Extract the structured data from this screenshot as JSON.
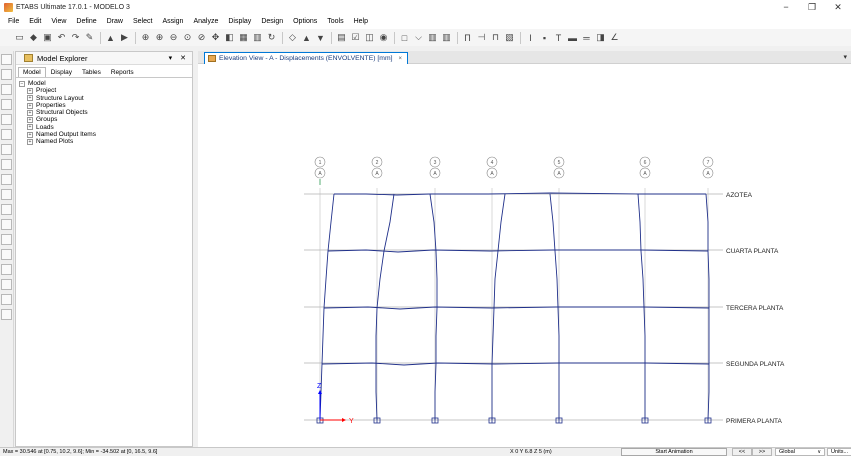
{
  "title_bar": {
    "title": "ETABS Ultimate 17.0.1 - MODELO 3",
    "minimize_glyph": "−",
    "restore_glyph": "❐",
    "close_glyph": "✕"
  },
  "menu": [
    "File",
    "Edit",
    "View",
    "Define",
    "Draw",
    "Select",
    "Assign",
    "Analyze",
    "Display",
    "Design",
    "Options",
    "Tools",
    "Help"
  ],
  "toolbar_icons": [
    "new-model-icon",
    "open-icon",
    "save-icon",
    "undo-icon",
    "redo-icon",
    "edit-pencil-icon",
    "lock-icon",
    "run-analysis-icon",
    "zoom-window-icon",
    "zoom-in-icon",
    "zoom-out-icon",
    "zoom-fit-icon",
    "zoom-previous-icon",
    "pan-icon",
    "3d-view-icon",
    "plan-view-icon",
    "elevation-view-icon",
    "rotate-icon",
    "perspective-icon",
    "move-up-icon",
    "move-down-icon",
    "set-display-icon",
    "shrink-icon",
    "extrude-icon",
    "object-fill-icon",
    "wireframe-icon",
    "section-cut-icon",
    "deformed-shape-icon",
    "frame-forces-icon",
    "assign-icon",
    "draw-frame-icon",
    "draw-area-icon",
    "draw-line-icon",
    "draw-wall-icon",
    "draw-beam-icon",
    "undo-select-icon"
  ],
  "explorer": {
    "title": "Model Explorer",
    "pin_glyph": "▾",
    "close_glyph": "✕",
    "tabs": [
      "Model",
      "Display",
      "Tables",
      "Reports"
    ],
    "active_tab": "Model",
    "tree_root": "Model",
    "tree_items": [
      "Project",
      "Structure Layout",
      "Properties",
      "Structural Objects",
      "Groups",
      "Loads",
      "Named Output Items",
      "Named Plots"
    ],
    "collapse_glyph": "−",
    "expand_glyph": "+"
  },
  "view": {
    "tab_title": "Elevation View - A  - Displacements (ENVOLVENTE)  [mm]",
    "tab_close": "×",
    "menu_glyph": "▾"
  },
  "elevation": {
    "grid_bubbles": [
      {
        "number": "1",
        "letter": "A"
      },
      {
        "number": "2",
        "letter": "A"
      },
      {
        "number": "3",
        "letter": "A"
      },
      {
        "number": "4",
        "letter": "A"
      },
      {
        "number": "5",
        "letter": "A"
      },
      {
        "number": "6",
        "letter": "A"
      },
      {
        "number": "7",
        "letter": "A"
      }
    ],
    "story_labels": [
      "AZOTEA",
      "CUARTA PLANTA",
      "TERCERA PLANTA",
      "SEGUNDA PLANTA",
      "PRIMERA PLANTA"
    ],
    "axis_z": "Z",
    "axis_y": "Y",
    "colors": {
      "frame": "#20308a",
      "grid": "#a0a0a0",
      "axis_z": "#0000ff",
      "axis_y": "#ff0000"
    }
  },
  "status": {
    "maxmin": "Max = 30.546 at [0.75, 10.2, 9.6];  Min = -34.502 at [0, 16.5, 9.6]",
    "coords": "X 0  Y 6.8  Z 5 (m)",
    "animation_button": "Start Animation",
    "prev_button": "<<",
    "next_button": ">>",
    "coord_system": "Global",
    "coord_dropdown_glyph": "∨",
    "units": "Units..."
  }
}
